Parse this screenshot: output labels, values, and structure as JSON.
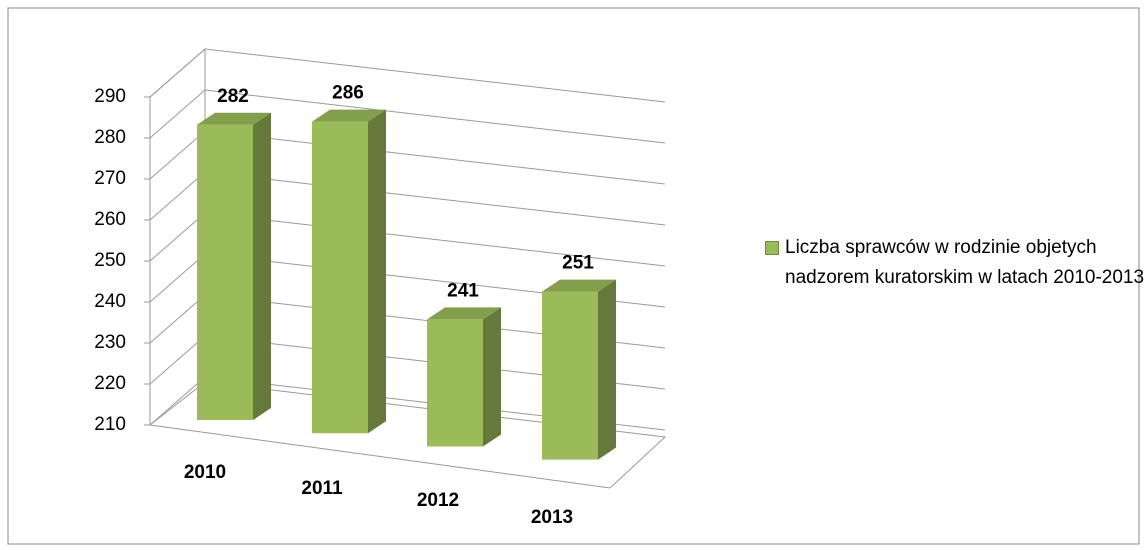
{
  "chart_data": {
    "type": "bar3d",
    "categories": [
      "2010",
      "2011",
      "2012",
      "2013"
    ],
    "series": [
      {
        "name": "Liczba sprawców w rodzinie objetych nadzorem kuratorskim w latach 2010-2013",
        "color": "#9bbb59",
        "values": [
          282,
          286,
          241,
          251
        ]
      }
    ],
    "ylim": [
      210,
      290
    ],
    "yticks": [
      210,
      220,
      230,
      240,
      250,
      260,
      270,
      280,
      290
    ],
    "grid": true,
    "legend": "right"
  }
}
